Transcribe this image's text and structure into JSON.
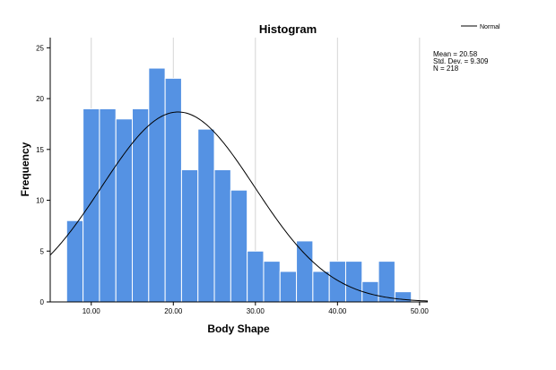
{
  "chart_data": {
    "type": "bar",
    "title": "Histogram",
    "xlabel": "Body Shape",
    "ylabel": "Frequency",
    "xlim": [
      5.0,
      51.0
    ],
    "ylim": [
      0,
      26
    ],
    "x_ticks": [
      10,
      20,
      30,
      40,
      50
    ],
    "x_tick_labels": [
      "10.00",
      "20.00",
      "30.00",
      "40.00",
      "50.00"
    ],
    "y_ticks": [
      0,
      5,
      10,
      15,
      20,
      25
    ],
    "y_tick_labels": [
      "0",
      "5",
      "10",
      "15",
      "20",
      "25"
    ],
    "bin_width": 2,
    "bin_starts": [
      7,
      9,
      11,
      13,
      15,
      17,
      19,
      21,
      23,
      25,
      27,
      29,
      31,
      33,
      35,
      37,
      39,
      41,
      43,
      45,
      47
    ],
    "values": [
      8,
      19,
      19,
      18,
      19,
      23,
      22,
      13,
      17,
      13,
      11,
      5,
      4,
      3,
      6,
      3,
      4,
      4,
      2,
      4,
      1
    ],
    "bar_color": "#5592e3",
    "normal_curve": {
      "mean": 20.58,
      "sd": 9.309,
      "n": 218
    },
    "legend": {
      "entries": [
        "Normal"
      ],
      "placement": "top-right"
    },
    "stats": [
      "Mean = 20.58",
      "Std. Dev. = 9.309",
      "N = 218"
    ],
    "grid": true
  }
}
